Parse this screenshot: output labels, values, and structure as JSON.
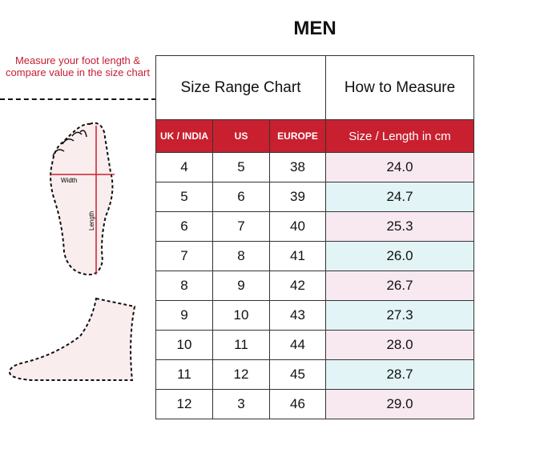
{
  "title": "MEN",
  "instruction": "Measure your foot length & compare value in the size chart",
  "foot_labels": {
    "width": "Width",
    "length": "Length"
  },
  "table": {
    "header_left": "Size Range Chart",
    "header_right": "How to Measure",
    "columns": [
      "UK / INDIA",
      "US",
      "EUROPE",
      "Size / Length in cm"
    ],
    "rows": [
      [
        "4",
        "5",
        "38",
        "24.0"
      ],
      [
        "5",
        "6",
        "39",
        "24.7"
      ],
      [
        "6",
        "7",
        "40",
        "25.3"
      ],
      [
        "7",
        "8",
        "41",
        "26.0"
      ],
      [
        "8",
        "9",
        "42",
        "26.7"
      ],
      [
        "9",
        "10",
        "43",
        "27.3"
      ],
      [
        "10",
        "11",
        "44",
        "28.0"
      ],
      [
        "11",
        "12",
        "45",
        "28.7"
      ],
      [
        "12",
        "3",
        "46",
        "29.0"
      ]
    ]
  },
  "colors": {
    "accent": "#c8202f",
    "row_pink": "#f8e9f1",
    "row_cyan": "#e2f4f6"
  }
}
